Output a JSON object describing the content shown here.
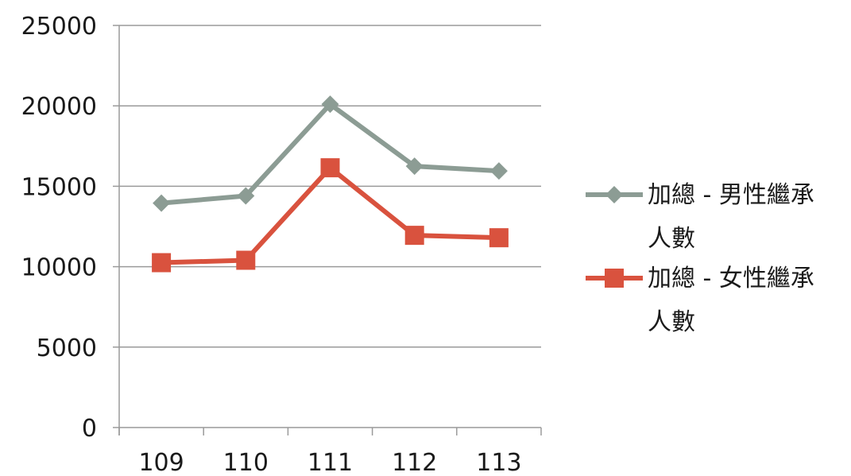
{
  "chart_data": {
    "type": "line",
    "title": "",
    "xlabel": "",
    "ylabel": "",
    "categories": [
      "109",
      "110",
      "111",
      "112",
      "113"
    ],
    "ylim": [
      0,
      25000
    ],
    "yticks": [
      "0",
      "5000",
      "10000",
      "15000",
      "20000",
      "25000"
    ],
    "grid": true,
    "legend_position": "right",
    "series": [
      {
        "name": "加總 - 男性繼承人數",
        "legend_lines": [
          "加總 - 男性繼承",
          "人數"
        ],
        "values": [
          13950,
          14400,
          20100,
          16250,
          15950
        ],
        "color": "#8c9c94",
        "marker": "diamond"
      },
      {
        "name": "加總 - 女性繼承人數",
        "legend_lines": [
          "加總 - 女性繼承",
          "人數"
        ],
        "values": [
          10250,
          10400,
          16150,
          11950,
          11800
        ],
        "color": "#d9523e",
        "marker": "square"
      }
    ]
  }
}
